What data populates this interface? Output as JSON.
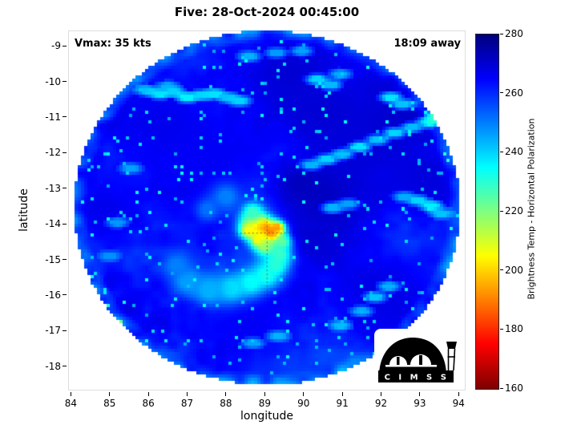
{
  "annotations": {
    "vmax": "Vmax: 35 kts",
    "time_offset": "18:09 away"
  },
  "logo": {
    "text": "C I M S S"
  },
  "chart_data": {
    "type": "heatmap",
    "title": "Five: 28-Oct-2024 00:45:00",
    "xlabel": "longitude",
    "ylabel": "latitude",
    "value_label": "Brightness Temp - Horizontal Polarization",
    "value_range": [
      160,
      280
    ],
    "colormap": "jet-reversed",
    "colorbar_ticks": [
      280,
      260,
      240,
      220,
      200,
      180,
      160
    ],
    "xlim": [
      83.93,
      94.18
    ],
    "ylim": [
      -18.68,
      -8.57
    ],
    "xticks": [
      84,
      85,
      86,
      87,
      88,
      89,
      90,
      91,
      92,
      93,
      94
    ],
    "yticks": [
      -9,
      -10,
      -11,
      -12,
      -13,
      -14,
      -15,
      -16,
      -17,
      -18
    ],
    "storm": {
      "vmax_kts": 35,
      "center_lon": 89.05,
      "center_lat": -14.25
    },
    "swath": {
      "center_lon": 89.06,
      "center_lat": -13.55,
      "radius_deg": 4.98,
      "background_temp_k": 261
    },
    "noise": {
      "octave_scales": [
        0.55,
        1.6,
        4.2
      ],
      "octave_amps": [
        10,
        7,
        5
      ],
      "speckle_threshold": 0.974
    },
    "warm_features": [
      [
        88.7,
        -13.95,
        0.3,
        212
      ],
      [
        88.58,
        -14.18,
        0.22,
        206
      ],
      [
        88.95,
        -14.05,
        0.28,
        198
      ],
      [
        89.18,
        -14.3,
        0.24,
        176
      ],
      [
        89.32,
        -14.12,
        0.2,
        192
      ],
      [
        88.88,
        -14.44,
        0.26,
        202
      ],
      [
        89.06,
        -14.64,
        0.25,
        214
      ],
      [
        88.68,
        -13.68,
        0.26,
        228
      ],
      [
        89.45,
        -14.5,
        0.22,
        222
      ],
      [
        89.38,
        -14.86,
        0.3,
        228
      ],
      [
        89.28,
        -15.16,
        0.32,
        230
      ],
      [
        89.02,
        -15.45,
        0.35,
        232
      ],
      [
        88.62,
        -15.65,
        0.38,
        234
      ],
      [
        88.12,
        -15.8,
        0.42,
        238
      ],
      [
        87.55,
        -15.85,
        0.45,
        244
      ],
      [
        87.0,
        -15.6,
        0.4,
        246
      ],
      [
        86.72,
        -15.15,
        0.35,
        250
      ],
      [
        88.0,
        -13.25,
        0.38,
        250
      ],
      [
        87.52,
        -13.6,
        0.32,
        252
      ]
    ],
    "cool_dark_patches": [
      [
        89.6,
        -9.8,
        1.6,
        270
      ],
      [
        91.6,
        -11.9,
        1.6,
        269
      ],
      [
        92.7,
        -10.7,
        1.2,
        271
      ],
      [
        90.6,
        -13.4,
        1.0,
        272
      ],
      [
        89.9,
        -12.9,
        0.7,
        273
      ],
      [
        91.9,
        -15.9,
        1.4,
        268
      ],
      [
        86.4,
        -11.3,
        1.4,
        267
      ],
      [
        84.9,
        -13.6,
        1.1,
        267
      ],
      [
        87.8,
        -12.3,
        1.2,
        266
      ],
      [
        90.3,
        -14.5,
        0.8,
        270
      ],
      [
        93.2,
        -12.8,
        0.9,
        269
      ],
      [
        88.6,
        -16.8,
        1.2,
        266
      ],
      [
        90.6,
        -10.9,
        1.0,
        270
      ]
    ],
    "convective_speckles": [
      [
        85.95,
        -10.25,
        242
      ],
      [
        86.3,
        -10.35,
        238
      ],
      [
        86.65,
        -10.3,
        240
      ],
      [
        87.0,
        -10.45,
        236
      ],
      [
        87.35,
        -10.4,
        240
      ],
      [
        87.7,
        -10.35,
        238
      ],
      [
        88.05,
        -10.45,
        242
      ],
      [
        88.35,
        -10.55,
        240
      ],
      [
        86.5,
        -10.15,
        244
      ],
      [
        90.35,
        -9.95,
        240
      ],
      [
        90.7,
        -10.1,
        243
      ],
      [
        90.95,
        -9.8,
        245
      ],
      [
        92.25,
        -10.45,
        238
      ],
      [
        92.55,
        -10.65,
        242
      ],
      [
        92.9,
        -9.65,
        244
      ],
      [
        93.05,
        -10.05,
        246
      ],
      [
        90.2,
        -12.35,
        244
      ],
      [
        90.6,
        -12.2,
        240
      ],
      [
        91.0,
        -12.05,
        242
      ],
      [
        91.45,
        -11.85,
        238
      ],
      [
        91.9,
        -11.65,
        242
      ],
      [
        92.35,
        -11.45,
        240
      ],
      [
        92.8,
        -11.3,
        243
      ],
      [
        93.2,
        -11.15,
        241
      ],
      [
        93.45,
        -11.0,
        244
      ],
      [
        92.95,
        -13.35,
        240
      ],
      [
        93.3,
        -13.5,
        237
      ],
      [
        93.55,
        -13.7,
        242
      ],
      [
        92.6,
        -13.25,
        245
      ],
      [
        90.75,
        -13.55,
        244
      ],
      [
        91.15,
        -13.45,
        246
      ],
      [
        91.85,
        -16.05,
        242
      ],
      [
        92.2,
        -15.75,
        244
      ],
      [
        91.5,
        -16.45,
        245
      ],
      [
        90.95,
        -16.85,
        243
      ],
      [
        89.35,
        -17.15,
        244
      ],
      [
        88.7,
        -17.35,
        246
      ],
      [
        85.55,
        -12.45,
        246
      ],
      [
        85.2,
        -13.95,
        247
      ],
      [
        85.0,
        -14.9,
        248
      ],
      [
        88.6,
        -9.3,
        244
      ],
      [
        89.3,
        -9.2,
        247
      ],
      [
        89.95,
        -9.15,
        246
      ]
    ]
  }
}
